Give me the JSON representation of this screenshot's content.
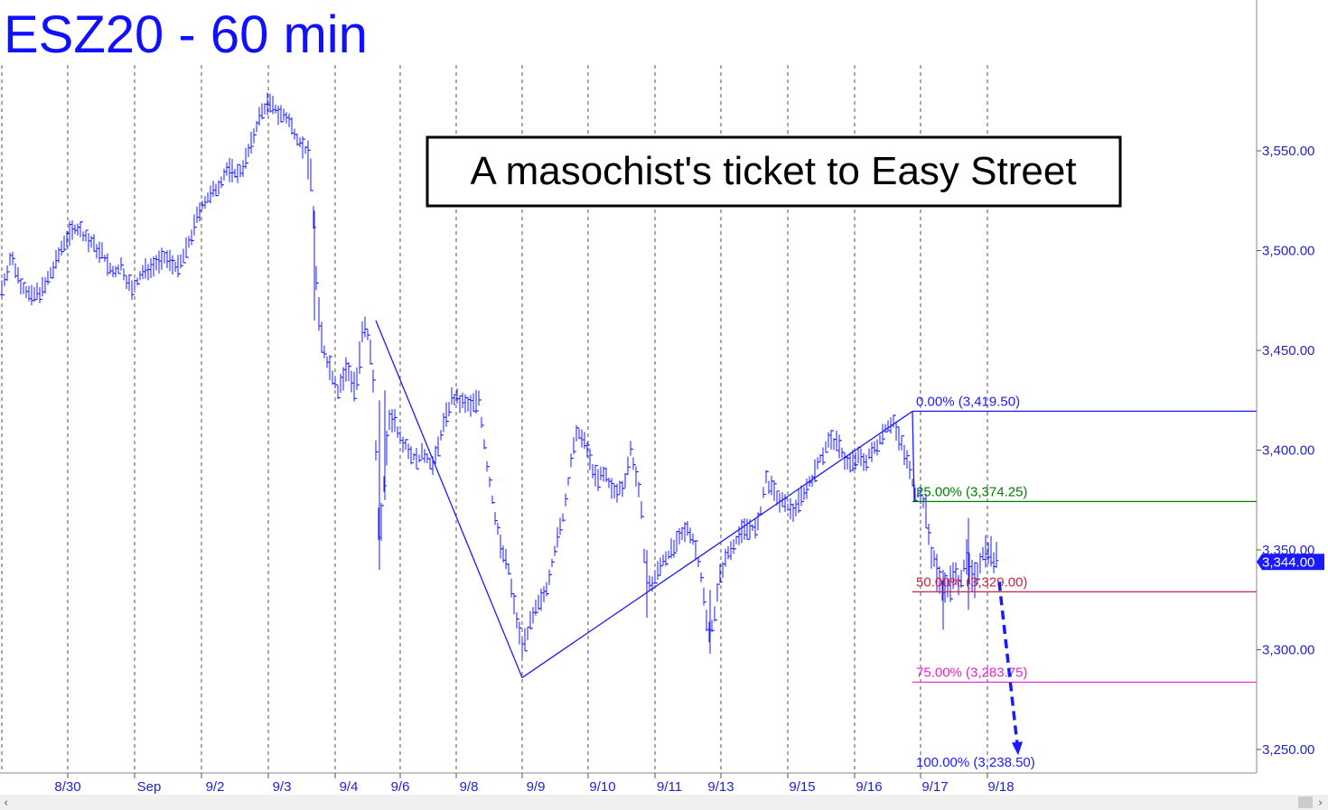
{
  "chart_data": {
    "type": "bar",
    "title": "ESZ20 - 60 min",
    "annotation": "A masochist's ticket to Easy Street",
    "ylim": [
      3235,
      3590
    ],
    "y_ticks": [
      {
        "value": 3250,
        "label": "3,250.00"
      },
      {
        "value": 3300,
        "label": "3,300.00"
      },
      {
        "value": 3350,
        "label": "3,350.00"
      },
      {
        "value": 3400,
        "label": "3,400.00"
      },
      {
        "value": 3450,
        "label": "3,450.00"
      },
      {
        "value": 3500,
        "label": "3,500.00"
      },
      {
        "value": 3550,
        "label": "3,550.00"
      }
    ],
    "x_ticks": [
      "8/30",
      "Sep",
      "9/2",
      "9/3",
      "9/4",
      "9/6",
      "9/8",
      "9/9",
      "9/10",
      "9/11",
      "9/13",
      "9/15",
      "9/16",
      "9/17",
      "9/18"
    ],
    "last_price": {
      "value": 3344.0,
      "label": "3,344.00"
    },
    "price_path": [
      [
        0,
        3478
      ],
      [
        12,
        3497
      ],
      [
        22,
        3485
      ],
      [
        34,
        3476
      ],
      [
        50,
        3482
      ],
      [
        62,
        3494
      ],
      [
        72,
        3506
      ],
      [
        84,
        3512
      ],
      [
        100,
        3504
      ],
      [
        114,
        3498
      ],
      [
        124,
        3488
      ],
      [
        134,
        3492
      ],
      [
        146,
        3480
      ],
      [
        158,
        3489
      ],
      [
        172,
        3494
      ],
      [
        186,
        3496
      ],
      [
        198,
        3491
      ],
      [
        210,
        3505
      ],
      [
        222,
        3522
      ],
      [
        238,
        3530
      ],
      [
        252,
        3541
      ],
      [
        264,
        3538
      ],
      [
        276,
        3550
      ],
      [
        286,
        3566
      ],
      [
        296,
        3574
      ],
      [
        306,
        3570
      ],
      [
        318,
        3566
      ],
      [
        328,
        3558
      ],
      [
        338,
        3550
      ],
      [
        346,
        3536
      ],
      [
        348,
        3500
      ],
      [
        352,
        3470
      ],
      [
        358,
        3450
      ],
      [
        366,
        3440
      ],
      [
        374,
        3430
      ],
      [
        384,
        3440
      ],
      [
        394,
        3432
      ],
      [
        402,
        3460
      ],
      [
        408,
        3456
      ],
      [
        414,
        3430
      ],
      [
        420,
        3350
      ],
      [
        426,
        3390
      ],
      [
        432,
        3420
      ],
      [
        440,
        3410
      ],
      [
        450,
        3402
      ],
      [
        460,
        3395
      ],
      [
        470,
        3398
      ],
      [
        480,
        3392
      ],
      [
        490,
        3412
      ],
      [
        500,
        3426
      ],
      [
        510,
        3424
      ],
      [
        520,
        3422
      ],
      [
        530,
        3426
      ],
      [
        538,
        3395
      ],
      [
        546,
        3372
      ],
      [
        554,
        3352
      ],
      [
        562,
        3342
      ],
      [
        570,
        3320
      ],
      [
        578,
        3302
      ],
      [
        586,
        3312
      ],
      [
        594,
        3320
      ],
      [
        604,
        3330
      ],
      [
        614,
        3350
      ],
      [
        624,
        3368
      ],
      [
        632,
        3395
      ],
      [
        640,
        3410
      ],
      [
        650,
        3400
      ],
      [
        660,
        3385
      ],
      [
        670,
        3388
      ],
      [
        680,
        3378
      ],
      [
        690,
        3382
      ],
      [
        698,
        3400
      ],
      [
        704,
        3388
      ],
      [
        710,
        3368
      ],
      [
        716,
        3330
      ],
      [
        724,
        3335
      ],
      [
        734,
        3345
      ],
      [
        744,
        3350
      ],
      [
        754,
        3356
      ],
      [
        762,
        3362
      ],
      [
        772,
        3348
      ],
      [
        778,
        3330
      ],
      [
        784,
        3308
      ],
      [
        790,
        3316
      ],
      [
        798,
        3340
      ],
      [
        808,
        3350
      ],
      [
        818,
        3358
      ],
      [
        828,
        3362
      ],
      [
        838,
        3360
      ],
      [
        848,
        3385
      ],
      [
        858,
        3378
      ],
      [
        868,
        3372
      ],
      [
        878,
        3370
      ],
      [
        888,
        3378
      ],
      [
        898,
        3385
      ],
      [
        908,
        3396
      ],
      [
        918,
        3405
      ],
      [
        928,
        3403
      ],
      [
        938,
        3393
      ],
      [
        948,
        3396
      ],
      [
        958,
        3395
      ],
      [
        968,
        3400
      ],
      [
        978,
        3410
      ],
      [
        988,
        3415
      ],
      [
        996,
        3405
      ],
      [
        1004,
        3395
      ],
      [
        1012,
        3380
      ],
      [
        1018,
        3378
      ],
      [
        1024,
        3372
      ],
      [
        1030,
        3350
      ],
      [
        1038,
        3338
      ],
      [
        1046,
        3330
      ],
      [
        1054,
        3335
      ],
      [
        1062,
        3336
      ],
      [
        1070,
        3345
      ],
      [
        1078,
        3332
      ],
      [
        1086,
        3348
      ],
      [
        1094,
        3352
      ],
      [
        1100,
        3345
      ],
      [
        1104,
        3344
      ]
    ],
    "trendlines": [
      [
        [
          416,
          3465
        ],
        [
          578,
          3286
        ]
      ],
      [
        [
          578,
          3286
        ],
        [
          1010,
          3419.5
        ]
      ],
      [
        [
          1010,
          3419.5
        ],
        [
          1012,
          3374.25
        ]
      ]
    ],
    "fib_levels": [
      {
        "label": "0.00% (3,419.50)",
        "value": 3419.5,
        "color": "#1a1aff"
      },
      {
        "label": "25.00% (3,374.25)",
        "value": 3374.25,
        "color": "#008000"
      },
      {
        "label": "50.00% (3,329.00)",
        "value": 3329.0,
        "color": "#cc2244"
      },
      {
        "label": "75.00% (3,283.75)",
        "value": 3283.75,
        "color": "#ee22cc"
      },
      {
        "label": "100.00% (3,238.50)",
        "value": 3238.5,
        "color": "#1a1aff"
      }
    ],
    "projection_arrow": [
      [
        1106,
        3334
      ],
      [
        1126,
        3248
      ]
    ],
    "colors": {
      "bars": "#1a1aff",
      "grid": "#555555",
      "axis_bg": "#ffffff",
      "price_tag": "#1a1aff"
    }
  }
}
